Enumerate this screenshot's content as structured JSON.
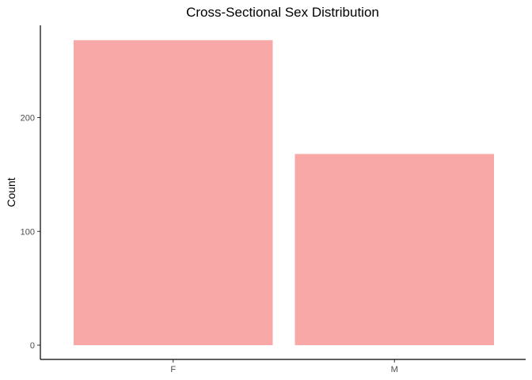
{
  "chart_data": {
    "type": "bar",
    "title": "Cross-Sectional Sex Distribution",
    "xlabel": "",
    "ylabel": "Count",
    "categories": [
      "F",
      "M"
    ],
    "values": [
      268,
      168
    ],
    "ylim": [
      0,
      280
    ],
    "yticks": [
      0,
      100,
      200
    ],
    "bar_color": "#F8A8A6",
    "grid": false,
    "legend": "none"
  }
}
